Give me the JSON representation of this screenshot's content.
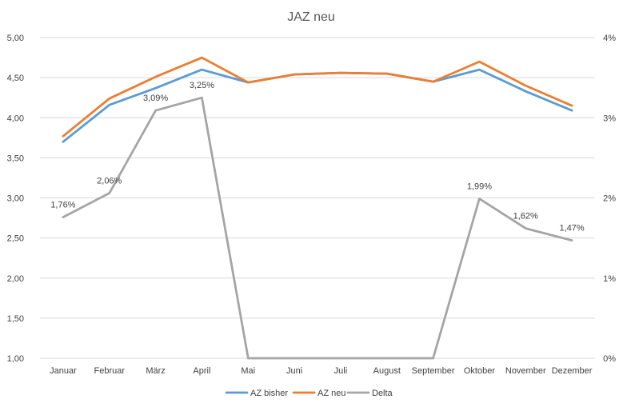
{
  "chart_data": {
    "type": "line",
    "title": "JAZ neu",
    "categories": [
      "Januar",
      "Februar",
      "März",
      "April",
      "Mai",
      "Juni",
      "Juli",
      "August",
      "September",
      "Oktober",
      "November",
      "Dezember"
    ],
    "y_left": {
      "ylim": [
        1.0,
        5.0
      ],
      "ticks": [
        1.0,
        1.5,
        2.0,
        2.5,
        3.0,
        3.5,
        4.0,
        4.5,
        5.0
      ],
      "tick_labels": [
        "1,00",
        "1,50",
        "2,00",
        "2,50",
        "3,00",
        "3,50",
        "4,00",
        "4,50",
        "5,00"
      ]
    },
    "y_right": {
      "ylim": [
        0,
        4
      ],
      "ticks": [
        0,
        1,
        2,
        3,
        4
      ],
      "tick_labels": [
        "0%",
        "1%",
        "2%",
        "3%",
        "4%"
      ]
    },
    "grid": true,
    "legend_position": "bottom",
    "series": [
      {
        "name": "AZ bisher",
        "axis": "left",
        "color": "#5b9bd5",
        "values": [
          3.7,
          4.16,
          4.37,
          4.6,
          4.44,
          4.54,
          4.56,
          4.55,
          4.45,
          4.6,
          4.33,
          4.09
        ]
      },
      {
        "name": "AZ neu",
        "axis": "left",
        "color": "#ed7d31",
        "values": [
          3.77,
          4.24,
          4.51,
          4.75,
          4.44,
          4.54,
          4.56,
          4.55,
          4.45,
          4.7,
          4.4,
          4.15
        ]
      },
      {
        "name": "Delta",
        "axis": "right",
        "color": "#a5a5a5",
        "values": [
          1.76,
          2.06,
          3.09,
          3.25,
          0,
          0,
          0,
          0,
          0,
          1.99,
          1.62,
          1.47
        ],
        "data_labels": [
          "1,76%",
          "2,06%",
          "3,09%",
          "3,25%",
          "",
          "",
          "",
          "",
          "",
          "1,99%",
          "1,62%",
          "1,47%"
        ]
      }
    ]
  }
}
